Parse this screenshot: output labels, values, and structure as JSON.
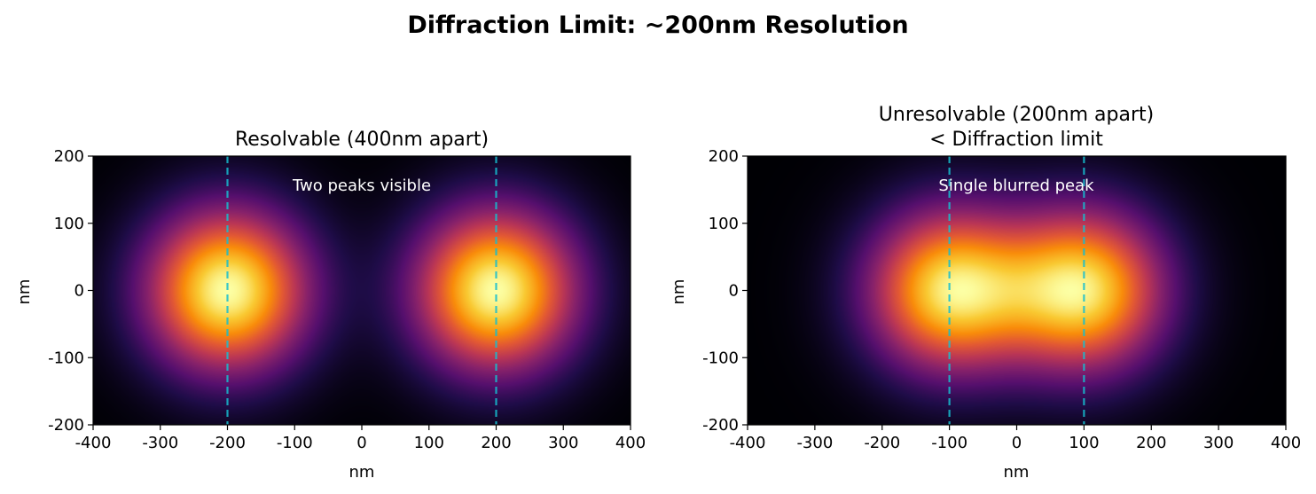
{
  "suptitle": "Diffraction Limit: ~200nm Resolution",
  "chart_data": [
    {
      "type": "heatmap",
      "title": "Resolvable (400nm apart)",
      "subtitle": "",
      "xlabel": "nm",
      "ylabel": "nm",
      "xlim": [
        -400,
        400
      ],
      "ylim": [
        -200,
        200
      ],
      "xticks": [
        "-400",
        "-300",
        "-200",
        "-100",
        "0",
        "100",
        "200",
        "300",
        "400"
      ],
      "yticks": [
        "-200",
        "-100",
        "0",
        "100",
        "200"
      ],
      "colormap": "inferno",
      "point_sources_x": [
        -200,
        200
      ],
      "psf_sigma_nm": 85,
      "marker_lines_x": [
        -200,
        200
      ],
      "marker_line_color": "#17becf",
      "annotation": "Two peaks visible"
    },
    {
      "type": "heatmap",
      "title": "Unresolvable (200nm apart)",
      "subtitle": "< Diffraction limit",
      "xlabel": "nm",
      "ylabel": "nm",
      "xlim": [
        -400,
        400
      ],
      "ylim": [
        -200,
        200
      ],
      "xticks": [
        "-400",
        "-300",
        "-200",
        "-100",
        "0",
        "100",
        "200",
        "300",
        "400"
      ],
      "yticks": [
        "-200",
        "-100",
        "0",
        "100",
        "200"
      ],
      "colormap": "inferno",
      "point_sources_x": [
        -100,
        100
      ],
      "psf_sigma_nm": 85,
      "marker_lines_x": [
        -100,
        100
      ],
      "marker_line_color": "#17becf",
      "annotation": "Single blurred peak"
    }
  ]
}
